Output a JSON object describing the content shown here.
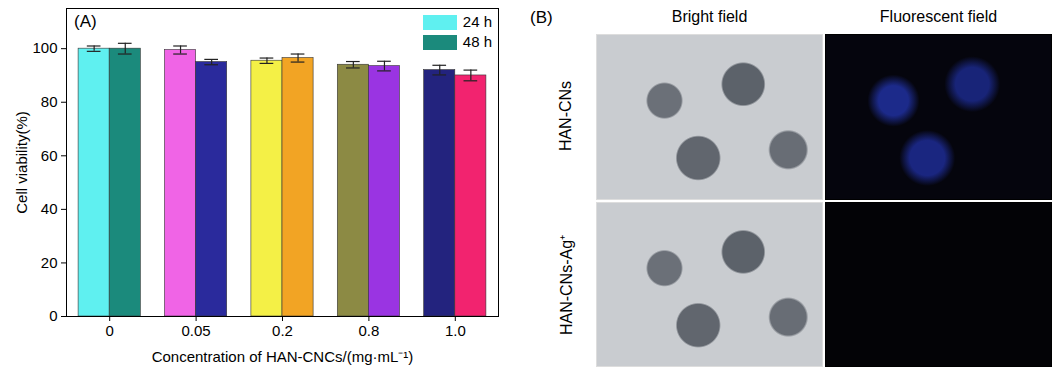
{
  "chart_data": {
    "type": "bar",
    "title": "(A)",
    "x_label": "Concentration of HAN-CNCs/(mg·mL⁻¹)",
    "y_label": "Cell viability(%)",
    "categories": [
      "0",
      "0.05",
      "0.2",
      "0.8",
      "1.0"
    ],
    "series": [
      {
        "name": "24 h",
        "color": "#5ff0f0",
        "colors": [
          "#5ff0f0",
          "#f064e6",
          "#f4f046",
          "#8c8a44",
          "#23237e"
        ],
        "values": [
          100,
          99.5,
          95.5,
          94,
          92
        ],
        "errors": [
          1,
          1.5,
          1,
          1.2,
          1.8
        ]
      },
      {
        "name": "48 h",
        "color": "#1b8a7c",
        "colors": [
          "#1b8a7c",
          "#2a2a9c",
          "#f2a424",
          "#9a34e2",
          "#f2236f"
        ],
        "values": [
          100,
          95,
          96.5,
          93.5,
          90
        ],
        "errors": [
          2,
          1,
          1.5,
          1.8,
          2
        ]
      }
    ],
    "ylim": [
      0,
      115
    ],
    "yticks": [
      0,
      20,
      40,
      60,
      80,
      100
    ],
    "grid": false,
    "legend": "top-right"
  },
  "panel_b": {
    "label": "(B)",
    "columns": [
      "Bright field",
      "Fluorescent field"
    ],
    "rows": [
      "HAN-CNs",
      "HAN-CNs-Ag⁺"
    ]
  }
}
